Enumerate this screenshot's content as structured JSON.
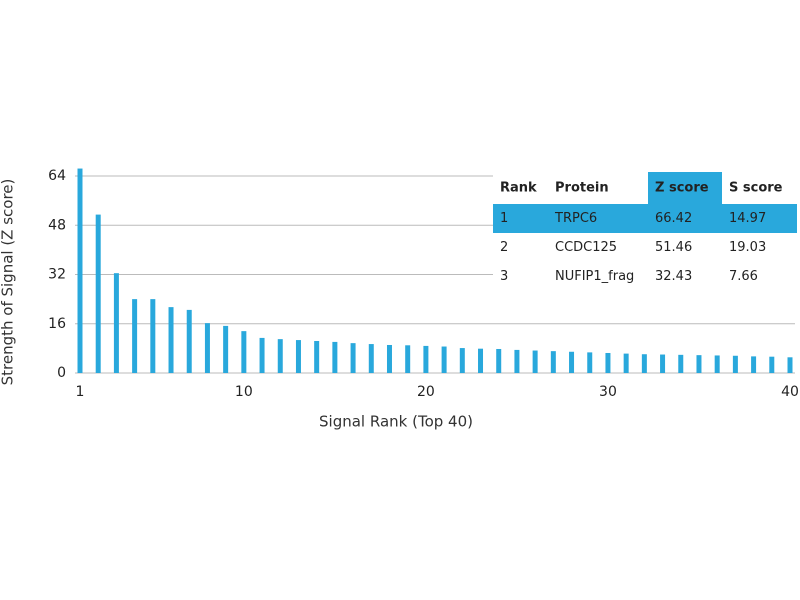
{
  "chart_data": {
    "type": "bar",
    "xlabel": "Signal Rank (Top 40)",
    "ylabel": "Strength of Signal (Z score)",
    "x": [
      1,
      2,
      3,
      4,
      5,
      6,
      7,
      8,
      9,
      10,
      11,
      12,
      13,
      14,
      15,
      16,
      17,
      18,
      19,
      20,
      21,
      22,
      23,
      24,
      25,
      26,
      27,
      28,
      29,
      30,
      31,
      32,
      33,
      34,
      35,
      36,
      37,
      38,
      39,
      40
    ],
    "values": [
      66.42,
      51.46,
      32.43,
      24,
      24,
      21.4,
      20.5,
      16.2,
      15.3,
      13.6,
      11.4,
      11,
      10.7,
      10.4,
      10.1,
      9.7,
      9.4,
      9.1,
      9,
      8.8,
      8.6,
      8.1,
      7.9,
      7.8,
      7.5,
      7.3,
      7.1,
      6.9,
      6.7,
      6.5,
      6.3,
      6.1,
      6,
      5.9,
      5.8,
      5.7,
      5.6,
      5.4,
      5.3,
      5.1
    ],
    "color": "#29a8dc",
    "xlim": [
      1,
      40
    ],
    "xticks": [
      1,
      10,
      20,
      30,
      40
    ],
    "ylim": [
      0,
      68
    ],
    "yticks": [
      0,
      16,
      32,
      48,
      64
    ],
    "grid": true
  },
  "table": {
    "header": [
      "Rank",
      "Protein",
      "Z score",
      "S score"
    ],
    "rows": [
      [
        "1",
        "TRPC6",
        "66.42",
        "14.97"
      ],
      [
        "2",
        "CCDC125",
        "51.46",
        "19.03"
      ],
      [
        "3",
        "NUFIP1_frag",
        "32.43",
        "7.66"
      ]
    ],
    "highlight_row": 0,
    "highlight_column": 2,
    "highlight_color": "#29a8dc"
  }
}
